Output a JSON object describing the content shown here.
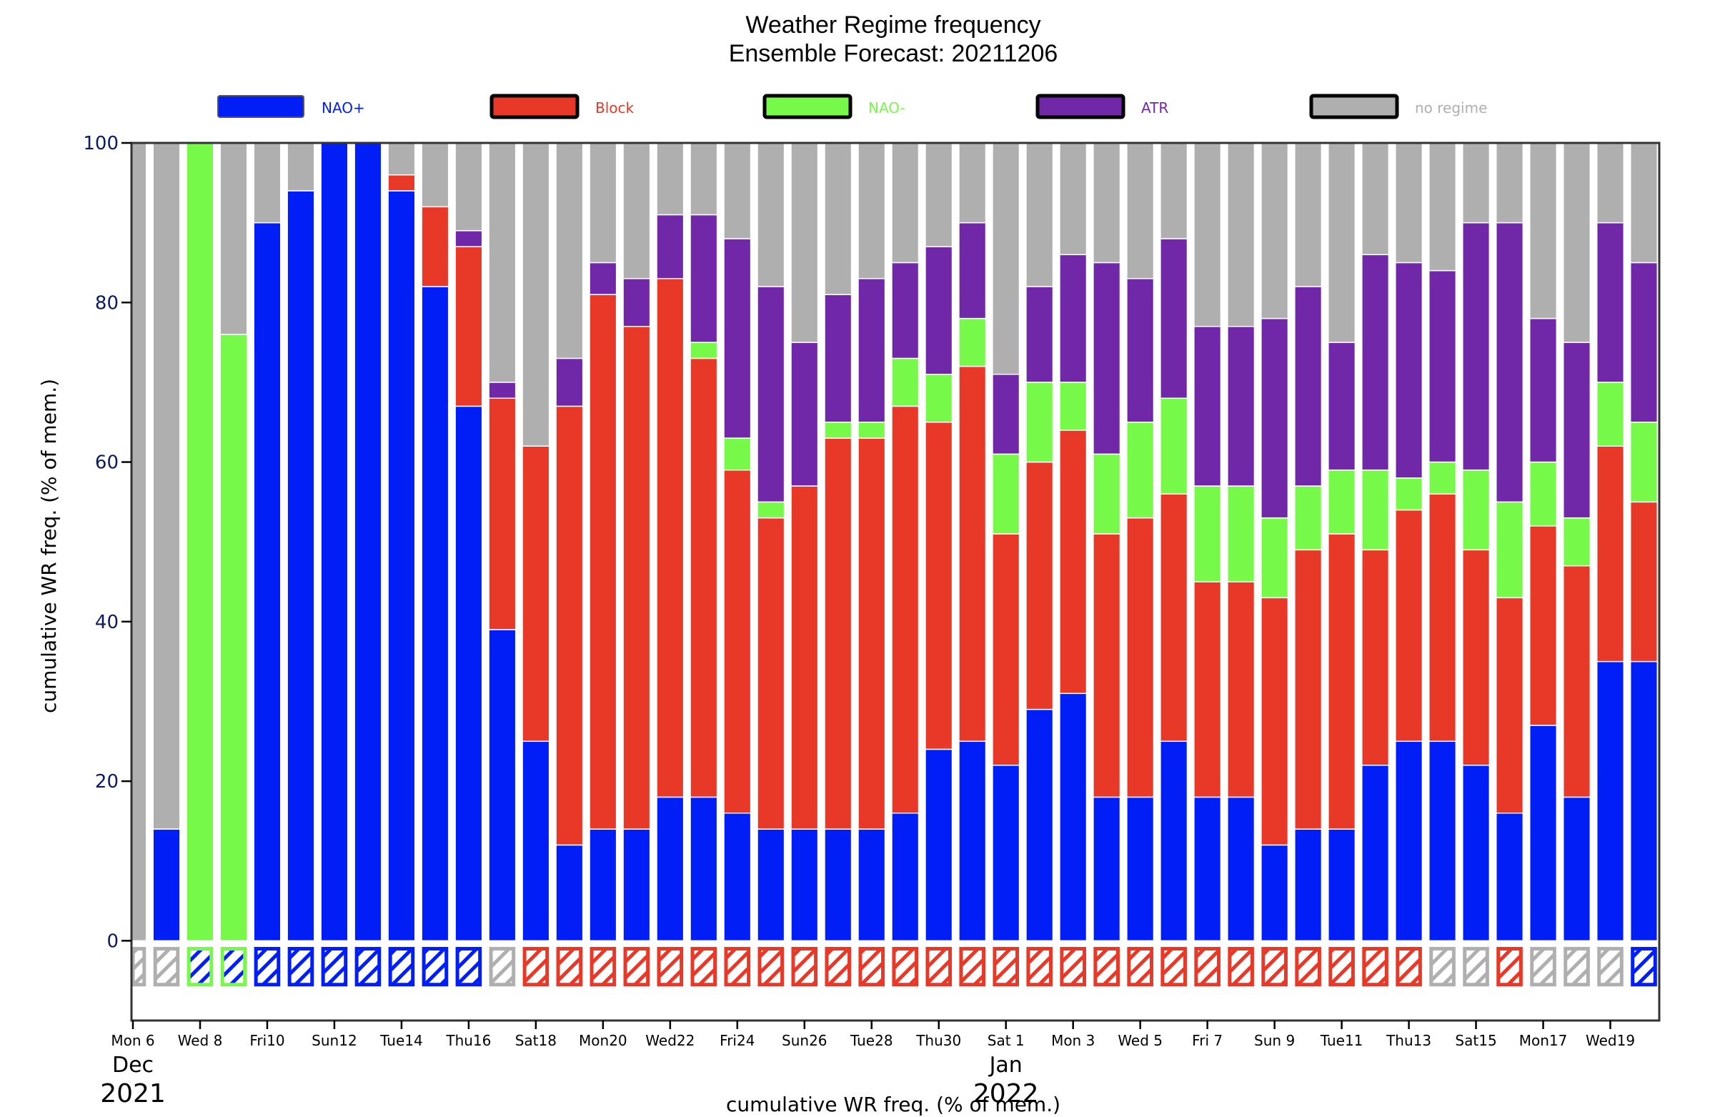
{
  "chart_data": {
    "type": "bar",
    "stacked": true,
    "title": "Weather Regime frequency",
    "subtitle": "Ensemble Forecast: 20211206",
    "xlabel": "cumulative WR freq. (% of mem.)",
    "ylabel": "cumulative WR freq. (% of mem.)",
    "ylim": [
      -10,
      100
    ],
    "yticks": [
      0,
      20,
      40,
      60,
      80,
      100
    ],
    "grid": false,
    "legend_position": "top",
    "legend": [
      {
        "name": "NAO+",
        "color": "#001ef5"
      },
      {
        "name": "Block",
        "color": "#e83828"
      },
      {
        "name": "NAO-",
        "color": "#77f94a"
      },
      {
        "name": "ATR",
        "color": "#7028a8"
      },
      {
        "name": "no regime",
        "color": "#afafaf"
      }
    ],
    "xtick_labels": [
      {
        "index": 0,
        "label": "Mon 6",
        "weekend": false
      },
      {
        "index": 2,
        "label": "Wed 8",
        "weekend": false
      },
      {
        "index": 4,
        "label": "Fri10",
        "weekend": false
      },
      {
        "index": 6,
        "label": "Sun12",
        "weekend": true
      },
      {
        "index": 8,
        "label": "Tue14",
        "weekend": false
      },
      {
        "index": 10,
        "label": "Thu16",
        "weekend": false
      },
      {
        "index": 12,
        "label": "Sat18",
        "weekend": false
      },
      {
        "index": 14,
        "label": "Mon20",
        "weekend": false
      },
      {
        "index": 16,
        "label": "Wed22",
        "weekend": false
      },
      {
        "index": 18,
        "label": "Fri24",
        "weekend": false
      },
      {
        "index": 20,
        "label": "Sun26",
        "weekend": true
      },
      {
        "index": 22,
        "label": "Tue28",
        "weekend": false
      },
      {
        "index": 24,
        "label": "Thu30",
        "weekend": false
      },
      {
        "index": 26,
        "label": "Sat 1",
        "weekend": false
      },
      {
        "index": 28,
        "label": "Mon 3",
        "weekend": false
      },
      {
        "index": 30,
        "label": "Wed 5",
        "weekend": false
      },
      {
        "index": 32,
        "label": "Fri 7",
        "weekend": false
      },
      {
        "index": 34,
        "label": "Sun 9",
        "weekend": true
      },
      {
        "index": 36,
        "label": "Tue11",
        "weekend": false
      },
      {
        "index": 38,
        "label": "Thu13",
        "weekend": false
      },
      {
        "index": 40,
        "label": "Sat15",
        "weekend": false
      },
      {
        "index": 42,
        "label": "Mon17",
        "weekend": false
      },
      {
        "index": 44,
        "label": "Wed19",
        "weekend": false
      }
    ],
    "month_labels": [
      {
        "index": 0,
        "month": "Dec",
        "year": "2021"
      },
      {
        "index": 26,
        "month": "Jan",
        "year": "2022"
      }
    ],
    "weekend_color": "#e83828",
    "categories": [
      "2021-12-06",
      "2021-12-07",
      "2021-12-08",
      "2021-12-09",
      "2021-12-10",
      "2021-12-11",
      "2021-12-12",
      "2021-12-13",
      "2021-12-14",
      "2021-12-15",
      "2021-12-16",
      "2021-12-17",
      "2021-12-18",
      "2021-12-19",
      "2021-12-20",
      "2021-12-21",
      "2021-12-22",
      "2021-12-23",
      "2021-12-24",
      "2021-12-25",
      "2021-12-26",
      "2021-12-27",
      "2021-12-28",
      "2021-12-29",
      "2021-12-30",
      "2021-12-31",
      "2022-01-01",
      "2022-01-02",
      "2022-01-03",
      "2022-01-04",
      "2022-01-05",
      "2022-01-06",
      "2022-01-07",
      "2022-01-08",
      "2022-01-09",
      "2022-01-10",
      "2022-01-11",
      "2022-01-12",
      "2022-01-13",
      "2022-01-14",
      "2022-01-15",
      "2022-01-16",
      "2022-01-17",
      "2022-01-18",
      "2022-01-19",
      "2022-01-20"
    ],
    "series": [
      {
        "name": "NAO+",
        "values": [
          0,
          14,
          0,
          0,
          90,
          94,
          100,
          100,
          94,
          82,
          67,
          39,
          25,
          12,
          14,
          14,
          18,
          18,
          16,
          14,
          14,
          14,
          14,
          16,
          24,
          25,
          22,
          29,
          31,
          18,
          18,
          25,
          18,
          18,
          12,
          14,
          14,
          22,
          25,
          25,
          22,
          16,
          27,
          18,
          35,
          35
        ]
      },
      {
        "name": "Block",
        "values": [
          0,
          0,
          0,
          0,
          0,
          0,
          0,
          0,
          2,
          10,
          20,
          29,
          37,
          55,
          67,
          63,
          65,
          55,
          43,
          39,
          43,
          49,
          49,
          51,
          41,
          47,
          29,
          31,
          33,
          33,
          35,
          31,
          27,
          27,
          31,
          35,
          37,
          27,
          29,
          31,
          27,
          27,
          25,
          29,
          27,
          20
        ]
      },
      {
        "name": "NAO-",
        "values": [
          0,
          0,
          100,
          76,
          0,
          0,
          0,
          0,
          0,
          0,
          0,
          0,
          0,
          0,
          0,
          0,
          0,
          2,
          4,
          2,
          0,
          2,
          2,
          6,
          6,
          6,
          10,
          10,
          6,
          10,
          12,
          12,
          12,
          12,
          10,
          8,
          8,
          10,
          4,
          4,
          10,
          12,
          8,
          6,
          8,
          10
        ]
      },
      {
        "name": "ATR",
        "values": [
          0,
          0,
          0,
          0,
          0,
          0,
          0,
          0,
          0,
          0,
          2,
          2,
          0,
          6,
          4,
          6,
          8,
          16,
          25,
          27,
          18,
          16,
          18,
          12,
          16,
          12,
          10,
          12,
          16,
          24,
          18,
          20,
          20,
          20,
          25,
          25,
          16,
          27,
          27,
          24,
          31,
          35,
          18,
          22,
          20,
          20
        ]
      },
      {
        "name": "no regime",
        "values": [
          100,
          86,
          0,
          24,
          10,
          6,
          0,
          0,
          4,
          8,
          11,
          30,
          38,
          27,
          15,
          17,
          9,
          9,
          12,
          18,
          25,
          19,
          17,
          15,
          13,
          10,
          29,
          18,
          14,
          15,
          17,
          12,
          23,
          23,
          22,
          18,
          25,
          14,
          15,
          16,
          10,
          10,
          22,
          25,
          10,
          15
        ]
      }
    ],
    "dominant_regime": [
      "no regime",
      "no regime",
      "NAO-",
      "NAO-",
      "NAO+",
      "NAO+",
      "NAO+",
      "NAO+",
      "NAO+",
      "NAO+",
      "NAO+",
      "no regime",
      "Block",
      "Block",
      "Block",
      "Block",
      "Block",
      "Block",
      "Block",
      "Block",
      "Block",
      "Block",
      "Block",
      "Block",
      "Block",
      "Block",
      "Block",
      "Block",
      "Block",
      "Block",
      "Block",
      "Block",
      "Block",
      "Block",
      "Block",
      "Block",
      "Block",
      "Block",
      "Block",
      "no regime",
      "no regime",
      "Block",
      "no regime",
      "no regime",
      "no regime",
      "NAO+"
    ]
  }
}
